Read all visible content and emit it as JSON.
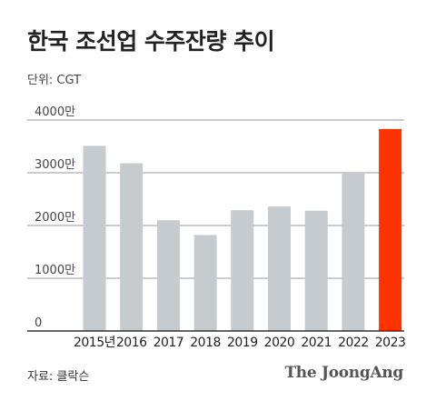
{
  "header": {
    "title": "한국 조선업 수주잔량 추이",
    "unit": "단위: CGT"
  },
  "footer": {
    "source": "자료: 클락슨",
    "brand": "The JoongAng"
  },
  "colors": {
    "bar": "#c5cbcf",
    "highlight": "#ff3300",
    "grid": "#9a9a9a",
    "axis": "#333333"
  },
  "chart_data": {
    "type": "bar",
    "title": "한국 조선업 수주잔량 추이",
    "categories": [
      "2015년",
      "2016",
      "2017",
      "2018",
      "2019",
      "2020",
      "2021",
      "2022",
      "2023"
    ],
    "values": [
      3510,
      3180,
      2100,
      1820,
      2290,
      2360,
      2280,
      3000,
      3830
    ],
    "highlight_index": 8,
    "yticks": [
      0,
      1000,
      2000,
      3000,
      4000
    ],
    "ytick_labels": [
      "0",
      "1000만",
      "2000만",
      "3000만",
      "4000만"
    ],
    "ylim": [
      0,
      4000
    ],
    "grid": true,
    "legend": "none"
  }
}
